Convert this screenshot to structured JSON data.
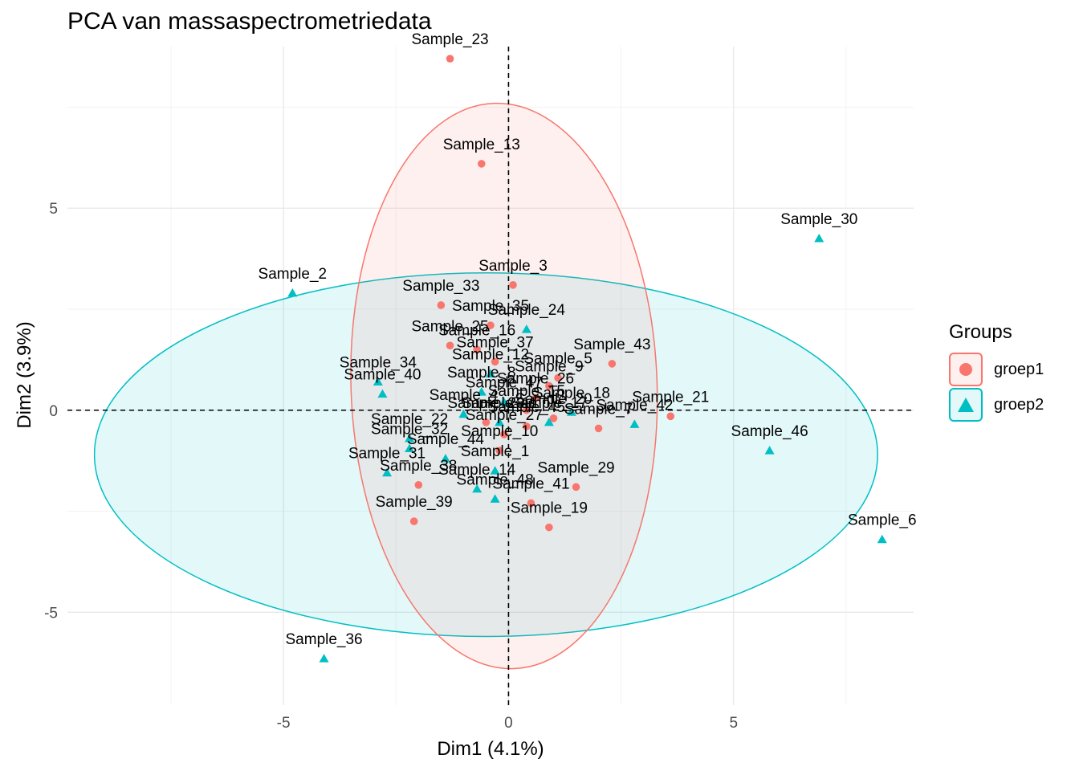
{
  "chart_data": {
    "type": "scatter",
    "title": "PCA van massaspectrometriedata",
    "xlabel": "Dim1 (4.1%)",
    "ylabel": "Dim2 (3.9%)",
    "xlim": [
      -9.8,
      9.0
    ],
    "ylim": [
      -7.3,
      9.0
    ],
    "x_ticks": [
      -5,
      0,
      5
    ],
    "x_tick_labels": [
      "-5",
      "0",
      "5"
    ],
    "y_ticks": [
      -5,
      0,
      5
    ],
    "y_tick_labels": [
      "-5",
      "0",
      "5"
    ],
    "grid": true,
    "legend": {
      "title": "Groups",
      "position": "right",
      "entries": [
        {
          "name": "groep1",
          "color": "#F8766D",
          "shape": "circle"
        },
        {
          "name": "groep2",
          "color": "#00BFC4",
          "shape": "triangle"
        }
      ]
    },
    "series": [
      {
        "name": "groep1",
        "color": "#F8766D",
        "shape": "circle",
        "ellipse": {
          "cx": -0.1,
          "cy": 0.6,
          "rx": 3.4,
          "ry": 7.0,
          "angle_deg": 2
        },
        "points": [
          {
            "label": "Sample_23",
            "x": -1.3,
            "y": 8.7
          },
          {
            "label": "Sample_13",
            "x": -0.6,
            "y": 6.1
          },
          {
            "label": "Sample_3",
            "x": 0.1,
            "y": 3.1
          },
          {
            "label": "Sample_33",
            "x": -1.5,
            "y": 2.6
          },
          {
            "label": "Sample_35",
            "x": -0.4,
            "y": 2.1
          },
          {
            "label": "Sample_25",
            "x": -1.3,
            "y": 1.6
          },
          {
            "label": "Sample_16",
            "x": -0.7,
            "y": 1.5
          },
          {
            "label": "Sample_43",
            "x": 2.3,
            "y": 1.15
          },
          {
            "label": "Sample_5",
            "x": 1.1,
            "y": 0.8
          },
          {
            "label": "Sample_37",
            "x": -0.3,
            "y": 1.2
          },
          {
            "label": "Sample_9",
            "x": 0.9,
            "y": 0.6
          },
          {
            "label": "Sample_20",
            "x": 1.0,
            "y": -0.2
          },
          {
            "label": "Sample_21",
            "x": 3.6,
            "y": -0.15
          },
          {
            "label": "Sample_7",
            "x": 2.0,
            "y": -0.45
          },
          {
            "label": "Sample_15",
            "x": 0.4,
            "y": 0.0
          },
          {
            "label": "Sample_27",
            "x": -0.1,
            "y": -0.6
          },
          {
            "label": "Sample_10",
            "x": -0.2,
            "y": -1.0
          },
          {
            "label": "Sample_29",
            "x": 1.5,
            "y": -1.9
          },
          {
            "label": "Sample_41",
            "x": 0.5,
            "y": -2.3
          },
          {
            "label": "Sample_19",
            "x": 0.9,
            "y": -2.9
          },
          {
            "label": "Sample_39",
            "x": -2.1,
            "y": -2.75
          },
          {
            "label": "Sample_38",
            "x": -2.0,
            "y": -1.85
          },
          {
            "label": "Sample_28",
            "x": -0.5,
            "y": -0.3
          },
          {
            "label": "Sample_45",
            "x": 0.4,
            "y": -0.4
          },
          {
            "label": "Sample_26",
            "x": 0.6,
            "y": 0.3
          }
        ]
      },
      {
        "name": "groep2",
        "color": "#00BFC4",
        "shape": "triangle",
        "ellipse": {
          "cx": -0.5,
          "cy": -1.1,
          "rx": 8.7,
          "ry": 4.5,
          "angle_deg": 0
        },
        "points": [
          {
            "label": "Sample_30",
            "x": 6.9,
            "y": 4.25
          },
          {
            "label": "Sample_2",
            "x": -4.8,
            "y": 2.9
          },
          {
            "label": "Sample_24",
            "x": 0.4,
            "y": 2.0
          },
          {
            "label": "Sample_34",
            "x": -2.9,
            "y": 0.7
          },
          {
            "label": "Sample_40",
            "x": -2.8,
            "y": 0.4
          },
          {
            "label": "Sample_46",
            "x": 5.8,
            "y": -1.0
          },
          {
            "label": "Sample_6",
            "x": 8.3,
            "y": -3.2
          },
          {
            "label": "Sample_36",
            "x": -4.1,
            "y": -6.15
          },
          {
            "label": "Sample_42",
            "x": 2.8,
            "y": -0.35
          },
          {
            "label": "Sample_4",
            "x": -1.0,
            "y": -0.1
          },
          {
            "label": "Sample_22",
            "x": -2.2,
            "y": -0.7
          },
          {
            "label": "Sample_32",
            "x": -2.2,
            "y": -0.95
          },
          {
            "label": "Sample_44",
            "x": -1.4,
            "y": -1.2
          },
          {
            "label": "Sample_1",
            "x": -0.3,
            "y": -1.5
          },
          {
            "label": "Sample_14",
            "x": -0.7,
            "y": -1.95
          },
          {
            "label": "Sample_48",
            "x": -0.3,
            "y": -2.2
          },
          {
            "label": "Sample_31",
            "x": -2.7,
            "y": -1.55
          },
          {
            "label": "Sample_11",
            "x": -0.2,
            "y": -0.3
          },
          {
            "label": "Sample_17",
            "x": 0.9,
            "y": -0.3
          },
          {
            "label": "Sample_18",
            "x": 1.4,
            "y": -0.05
          },
          {
            "label": "Sample_8",
            "x": -0.6,
            "y": 0.45
          },
          {
            "label": "Sample_12",
            "x": -0.4,
            "y": 0.9
          },
          {
            "label": "Sample_47",
            "x": -0.1,
            "y": 0.2
          }
        ]
      }
    ]
  }
}
